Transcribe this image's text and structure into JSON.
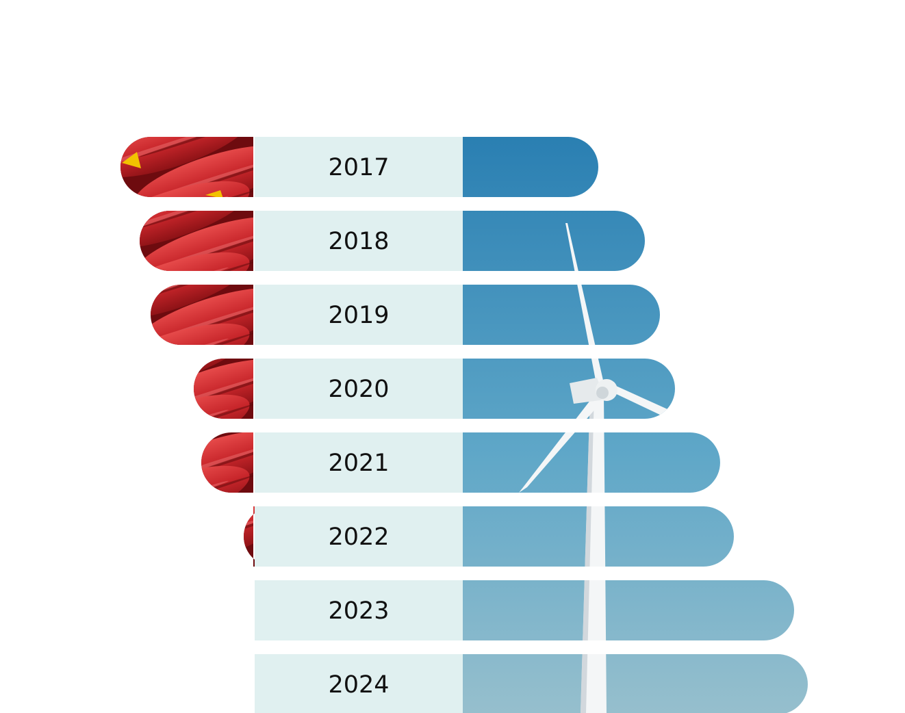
{
  "chart_data": {
    "type": "bar",
    "orientation": "horizontal-diverging",
    "categories": [
      "2017",
      "2018",
      "2019",
      "2020",
      "2021",
      "2022",
      "2023",
      "2024"
    ],
    "series": [
      {
        "values": [
          194,
          166,
          150,
          87,
          76,
          14,
          0,
          0
        ]
      },
      {
        "values": [
          198,
          266,
          288,
          310,
          376,
          396,
          484,
          504
        ]
      }
    ],
    "title": "",
    "xlabel": "",
    "ylabel": "",
    "grid": false,
    "legend": "none"
  },
  "colors": {
    "label_band": "#e0f0f0",
    "barrel_red": "#c8262b",
    "barrel_dark": "#6e0b0f",
    "sky_top": "#2a7fb2",
    "sky_bottom": "#96bfcd",
    "turbine": "#f4f6f7"
  },
  "icons": [
    "oil-barrel-photo",
    "wind-turbine-photo"
  ]
}
